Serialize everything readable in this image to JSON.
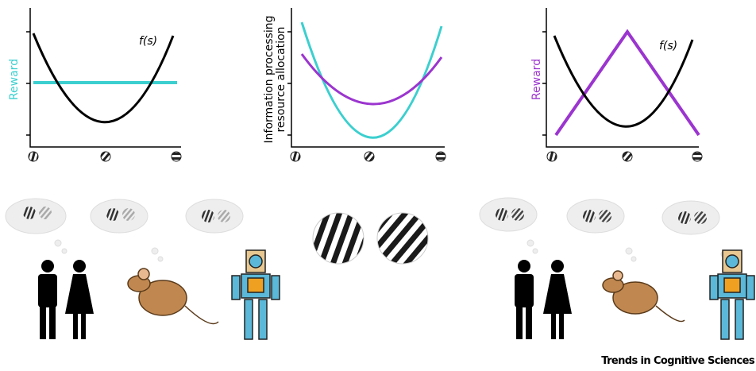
{
  "panel_left": {
    "y_label": "Reward",
    "curve_label": "f(s)"
  },
  "panel_middle": {
    "y_label_line1": "Information processing",
    "y_label_line2": "resource allocation"
  },
  "panel_right": {
    "y_label": "Reward",
    "curve_label": "f(s)"
  },
  "footer": {
    "journal": "Trends in Cognitive Sciences"
  }
}
